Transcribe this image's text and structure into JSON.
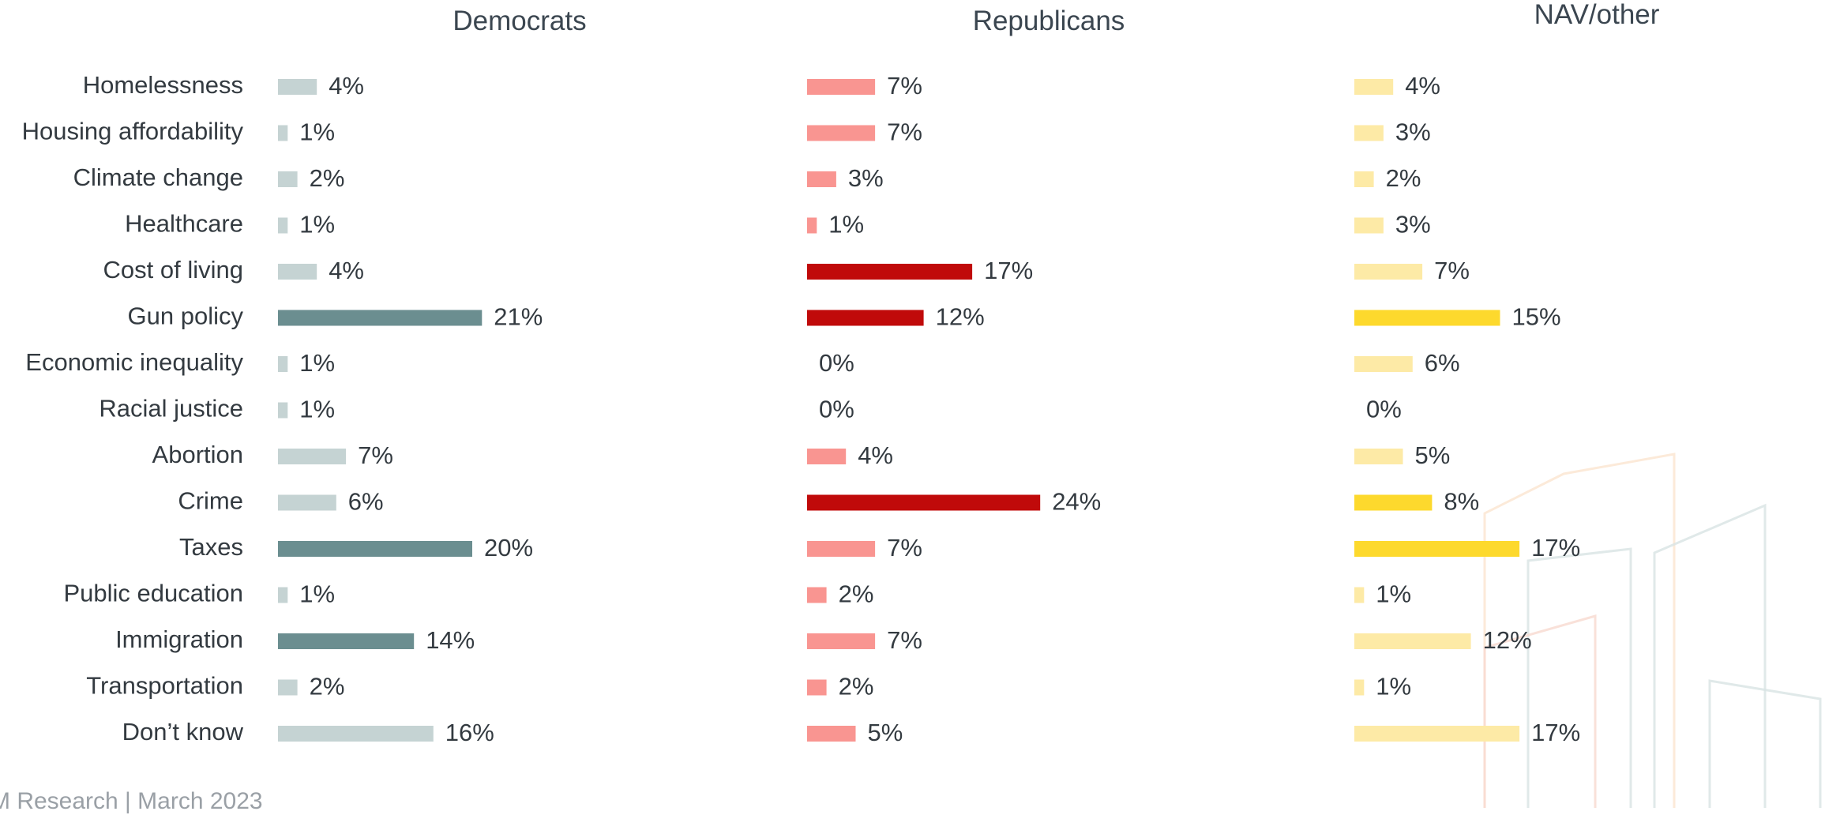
{
  "source_note": "M Research | March 2023",
  "chart_data": [
    {
      "type": "bar",
      "orientation": "horizontal",
      "title": "Democrats",
      "categories": [
        "Homelessness",
        "Housing affordability",
        "Climate change",
        "Healthcare",
        "Cost of living",
        "Gun policy",
        "Economic inequality",
        "Racial justice",
        "Abortion",
        "Crime",
        "Taxes",
        "Public education",
        "Immigration",
        "Transportation",
        "Don’t know"
      ],
      "values": [
        4,
        1,
        2,
        1,
        4,
        21,
        1,
        1,
        7,
        6,
        20,
        1,
        14,
        2,
        16
      ],
      "value_labels": [
        "4%",
        "1%",
        "2%",
        "1%",
        "4%",
        "21%",
        "1%",
        "1%",
        "7%",
        "6%",
        "20%",
        "1%",
        "14%",
        "2%",
        "16%"
      ],
      "highlighted": [
        "Gun policy",
        "Taxes",
        "Immigration"
      ],
      "colors": {
        "base": "#c5d3d3",
        "highlight": "#6b8e90"
      },
      "unit": "%"
    },
    {
      "type": "bar",
      "orientation": "horizontal",
      "title": "Republicans",
      "categories": [
        "Homelessness",
        "Housing affordability",
        "Climate change",
        "Healthcare",
        "Cost of living",
        "Gun policy",
        "Economic inequality",
        "Racial justice",
        "Abortion",
        "Crime",
        "Taxes",
        "Public education",
        "Immigration",
        "Transportation",
        "Don’t know"
      ],
      "values": [
        7,
        7,
        3,
        1,
        17,
        12,
        0,
        0,
        4,
        24,
        7,
        2,
        7,
        2,
        5
      ],
      "value_labels": [
        "7%",
        "7%",
        "3%",
        "1%",
        "17%",
        "12%",
        "0%",
        "0%",
        "4%",
        "24%",
        "7%",
        "2%",
        "7%",
        "2%",
        "5%"
      ],
      "highlighted": [
        "Cost of living",
        "Gun policy",
        "Crime"
      ],
      "colors": {
        "base": "#f99591",
        "highlight": "#c00a0a"
      },
      "unit": "%"
    },
    {
      "type": "bar",
      "orientation": "horizontal",
      "title": "NAV/other",
      "categories": [
        "Homelessness",
        "Housing affordability",
        "Climate change",
        "Healthcare",
        "Cost of living",
        "Gun policy",
        "Economic inequality",
        "Racial justice",
        "Abortion",
        "Crime",
        "Taxes",
        "Public education",
        "Immigration",
        "Transportation",
        "Don’t know"
      ],
      "values": [
        4,
        3,
        2,
        3,
        7,
        15,
        6,
        0,
        5,
        8,
        17,
        1,
        12,
        1,
        17
      ],
      "value_labels": [
        "4%",
        "3%",
        "2%",
        "3%",
        "7%",
        "15%",
        "6%",
        "0%",
        "5%",
        "8%",
        "17%",
        "1%",
        "12%",
        "1%",
        "17%"
      ],
      "highlighted": [
        "Gun policy",
        "Crime",
        "Taxes"
      ],
      "colors": {
        "base": "#fdeaa6",
        "highlight": "#fdd92d"
      },
      "unit": "%"
    }
  ]
}
